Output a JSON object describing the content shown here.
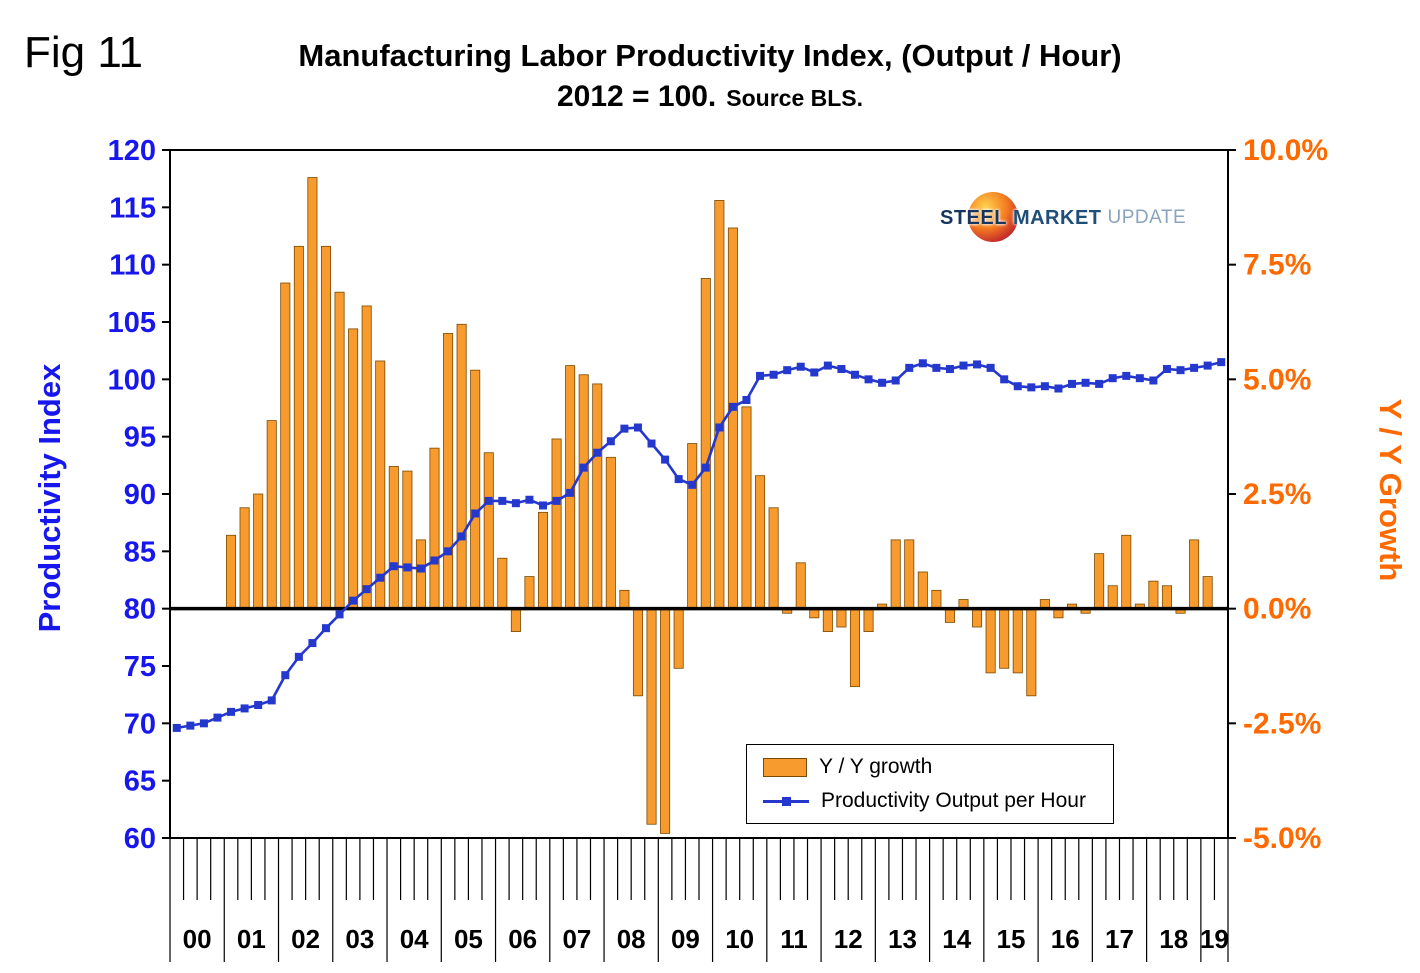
{
  "fig_label": "Fig 11",
  "title": "Manufacturing Labor Productivity Index, (Output / Hour)",
  "subtitle": "2012 = 100.",
  "source": "Source BLS.",
  "logo": {
    "word1": "STEEL",
    "word2": "MARKET",
    "word3": "UPDATE"
  },
  "legend": {
    "bar_label": "Y / Y growth",
    "line_label": "Productivity Output per Hour"
  },
  "chart_data": {
    "type": "bar+line",
    "title": "Manufacturing Labor Productivity Index, (Output / Hour)",
    "subtitle": "2012 = 100. Source BLS.",
    "x_unit": "quarter",
    "start_year": 2000,
    "total_quarters": 78,
    "x_year_labels": [
      "00",
      "01",
      "02",
      "03",
      "04",
      "05",
      "06",
      "07",
      "08",
      "09",
      "10",
      "11",
      "12",
      "13",
      "14",
      "15",
      "16",
      "17",
      "18",
      "19"
    ],
    "left_axis": {
      "label": "Productivity Index",
      "min": 60,
      "max": 120,
      "ticks": [
        60,
        65,
        70,
        75,
        80,
        85,
        90,
        95,
        100,
        105,
        110,
        115,
        120
      ],
      "color": "#1717ED"
    },
    "right_axis": {
      "label": "Y / Y Growth",
      "min": -5,
      "max": 10,
      "tick_values": [
        10,
        7.5,
        5,
        2.5,
        0,
        -2.5,
        -5
      ],
      "color": "#FF6A00"
    },
    "baseline_left_value": 80,
    "grid": "none",
    "legend_position": "inside-bottom-right",
    "series": [
      {
        "name": "Y / Y growth",
        "type": "bar",
        "color": "#F79B2E",
        "border_color": "#7A4A00",
        "start_quarter": "2001Q1",
        "start_quarter_index": 4,
        "unit": "percent",
        "values": [
          1.6,
          2.2,
          2.5,
          4.1,
          7.1,
          7.9,
          9.4,
          7.9,
          6.9,
          6.1,
          6.6,
          5.4,
          3.1,
          3.0,
          1.5,
          3.5,
          6.0,
          6.2,
          5.2,
          3.4,
          1.1,
          -0.5,
          0.7,
          2.1,
          3.7,
          5.3,
          5.1,
          4.9,
          3.3,
          0.4,
          -1.9,
          -4.7,
          -4.9,
          -1.3,
          3.6,
          7.2,
          8.9,
          8.3,
          4.4,
          2.9,
          2.2,
          -0.1,
          1.0,
          -0.2,
          -0.5,
          -0.4,
          -1.7,
          -0.5,
          0.1,
          1.5,
          1.5,
          0.8,
          0.4,
          -0.3,
          0.2,
          -0.4,
          -1.4,
          -1.3,
          -1.4,
          -1.9,
          0.2,
          -0.2,
          0.1,
          -0.1,
          1.2,
          0.5,
          1.6,
          0.1,
          0.6,
          0.5,
          -0.1,
          1.5,
          0.7
        ]
      },
      {
        "name": "Productivity Output per Hour",
        "type": "line",
        "color": "#2438CE",
        "marker": "square",
        "start_quarter": "2000Q1",
        "start_quarter_index": 0,
        "unit": "index (2012=100)",
        "values": [
          69.6,
          69.8,
          70.0,
          70.5,
          71.0,
          71.3,
          71.6,
          72.0,
          74.2,
          75.8,
          77.0,
          78.3,
          79.5,
          80.7,
          81.7,
          82.7,
          83.7,
          83.6,
          83.5,
          84.2,
          85.0,
          86.3,
          88.3,
          89.4,
          89.4,
          89.2,
          89.5,
          89.0,
          89.4,
          90.1,
          92.3,
          93.6,
          94.6,
          95.7,
          95.8,
          94.4,
          93.0,
          91.3,
          90.8,
          92.3,
          95.8,
          97.6,
          98.2,
          100.3,
          100.4,
          100.8,
          101.1,
          100.6,
          101.2,
          100.9,
          100.4,
          100.0,
          99.7,
          99.9,
          101.0,
          101.4,
          101.0,
          100.9,
          101.2,
          101.3,
          101.0,
          100.0,
          99.4,
          99.3,
          99.4,
          99.2,
          99.6,
          99.7,
          99.6,
          100.1,
          100.3,
          100.1,
          99.9,
          100.9,
          100.8,
          101.0,
          101.2,
          101.5
        ]
      }
    ]
  }
}
